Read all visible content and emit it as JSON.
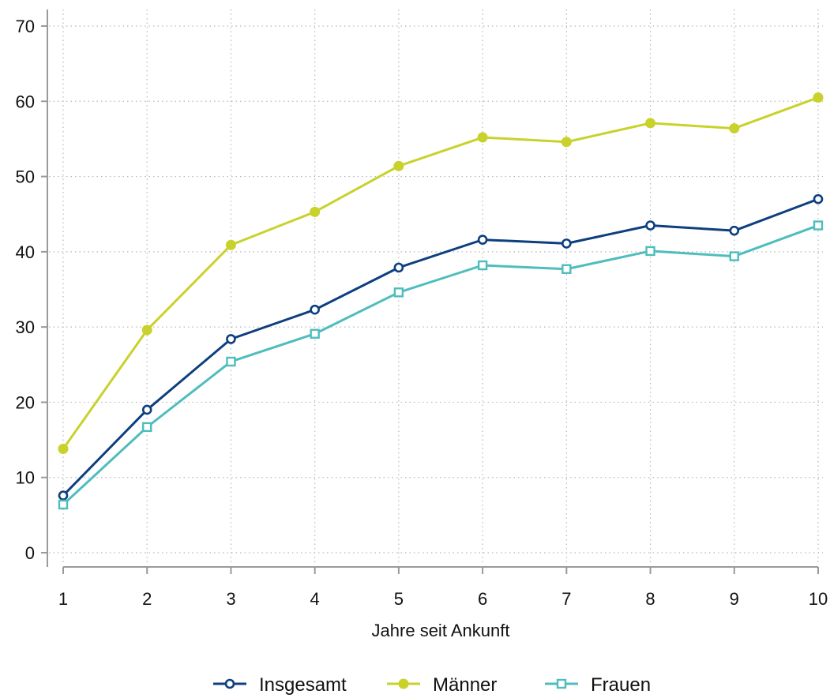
{
  "chart_data": {
    "type": "line",
    "title": "",
    "xlabel": "Jahre seit Ankunft",
    "ylabel": "",
    "x": [
      1,
      2,
      3,
      4,
      5,
      6,
      7,
      8,
      9,
      10
    ],
    "x_ticks": [
      "1",
      "2",
      "3",
      "4",
      "5",
      "6",
      "7",
      "8",
      "9",
      "10"
    ],
    "y_ticks": [
      "0",
      "10",
      "20",
      "30",
      "40",
      "50",
      "60",
      "70"
    ],
    "xlim": [
      1,
      10
    ],
    "ylim": [
      0,
      70
    ],
    "grid": true,
    "legend_position": "bottom",
    "series": [
      {
        "name": "Insgesamt",
        "values": [
          7.6,
          19.0,
          28.4,
          32.3,
          37.9,
          41.6,
          41.1,
          43.5,
          42.8,
          47.0
        ],
        "color": "#0d3f7f",
        "marker": "circle-hollow"
      },
      {
        "name": "Männer",
        "values": [
          13.8,
          29.6,
          40.9,
          45.3,
          51.4,
          55.2,
          54.6,
          57.1,
          56.4,
          60.5
        ],
        "color": "#c8d22b",
        "marker": "circle-filled"
      },
      {
        "name": "Frauen",
        "values": [
          6.4,
          16.7,
          25.4,
          29.1,
          34.6,
          38.2,
          37.7,
          40.1,
          39.4,
          43.5
        ],
        "color": "#4fbdbd",
        "marker": "square-hollow"
      }
    ]
  }
}
